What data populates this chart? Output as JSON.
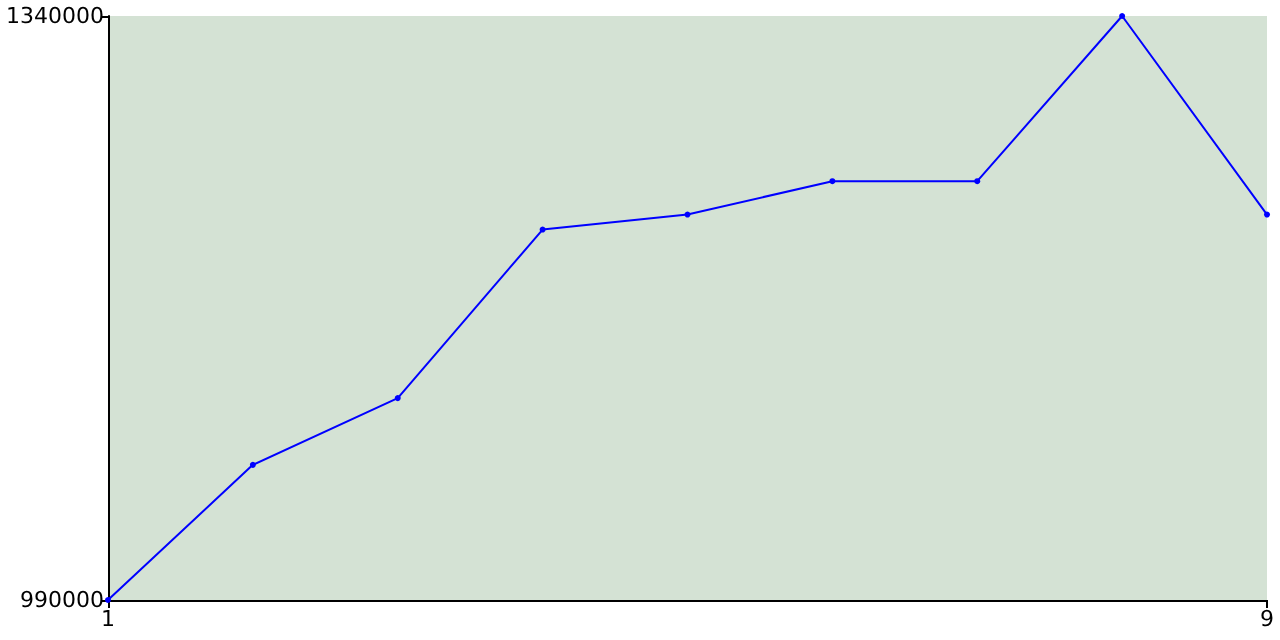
{
  "chart_data": {
    "type": "line",
    "x": [
      1,
      2,
      3,
      4,
      5,
      6,
      7,
      8,
      9
    ],
    "values": [
      990000,
      1071000,
      1111000,
      1212000,
      1221000,
      1241000,
      1241000,
      1340000,
      1221000
    ],
    "color": "#0000ff",
    "xlim": [
      1,
      9
    ],
    "xticks": [
      1,
      9
    ],
    "ylim": [
      990000,
      1340000
    ],
    "yticks": [
      990000,
      1340000
    ],
    "grid": false,
    "marker": "circle",
    "line_style": "solid"
  }
}
